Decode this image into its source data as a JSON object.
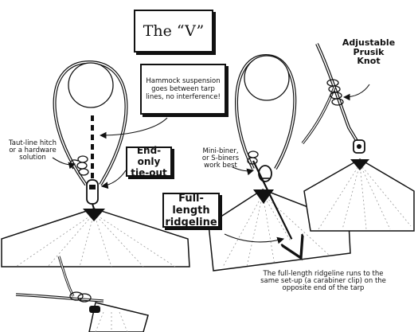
{
  "title": "The “V”",
  "labels": {
    "hammock_note": "Hammock suspension goes between tarp lines, no interference!",
    "end_only": "End-only tie-out",
    "tautline": "Taut-line hitch or a hardware solution",
    "minibiner": "Mini-biner, or S-biners work best",
    "full_length": "Full-length ridgeline",
    "adjustable": "Adjustable Prusik Knot",
    "ridgeline_note": "The full-length ridgeline runs to the same set-up (a carabiner clip) on the opposite end of the tarp"
  },
  "colors": {
    "ink": "#111111",
    "paper": "#ffffff"
  }
}
